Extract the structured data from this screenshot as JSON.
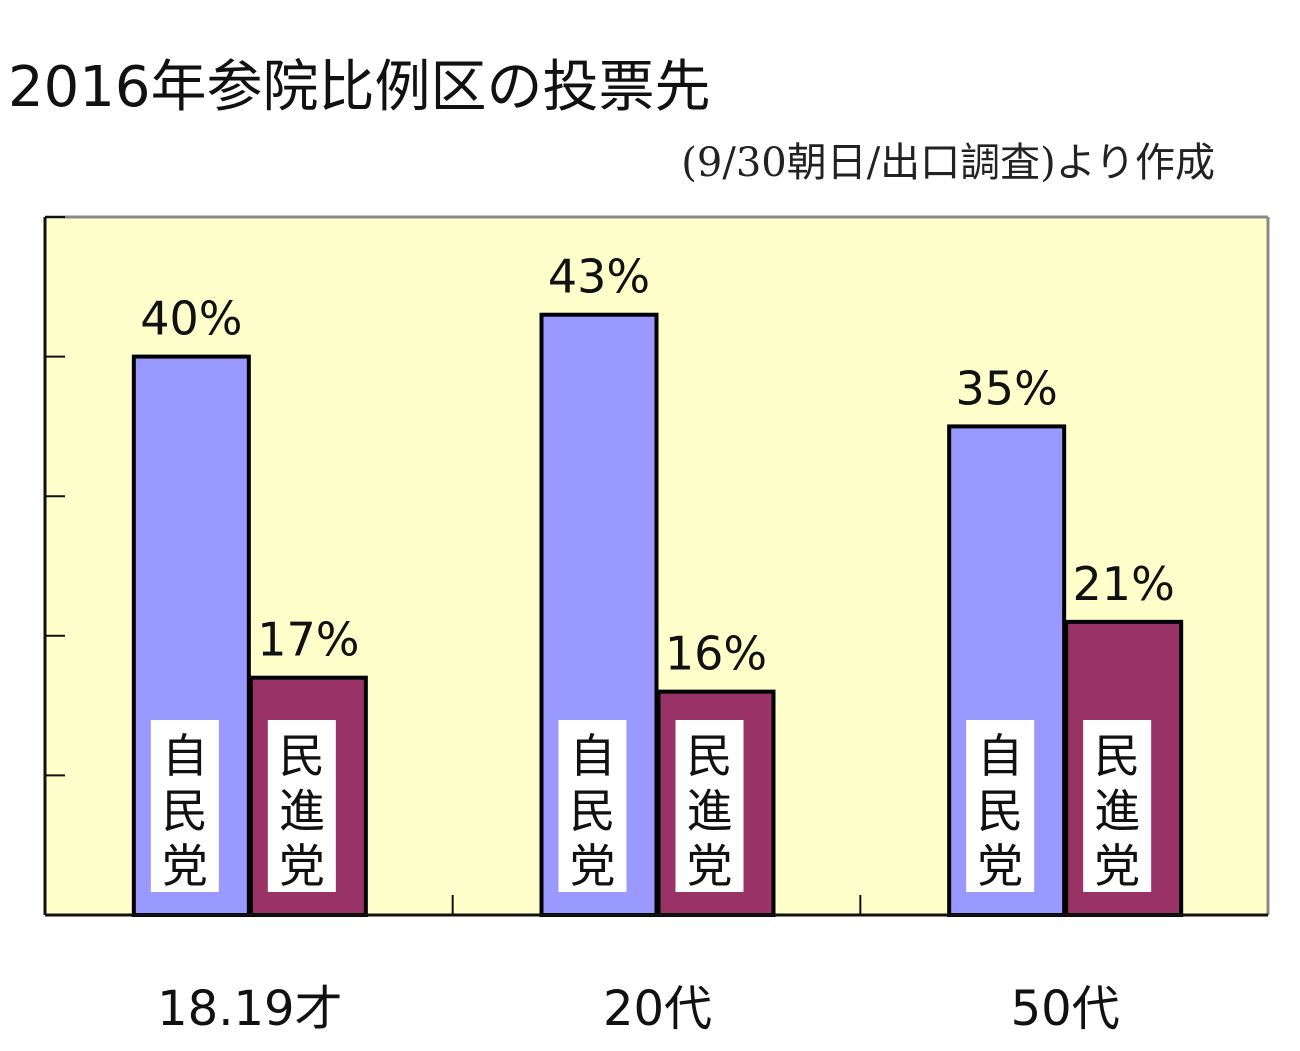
{
  "chart_data": {
    "type": "bar",
    "title": "2016年参院比例区の投票先",
    "subtitle": "(9/30朝日/出口調査)より作成",
    "categories": [
      "18.19才",
      "20代",
      "50代"
    ],
    "series": [
      {
        "name": "自民党",
        "values": [
          40,
          43,
          35
        ],
        "color": "#9999ff"
      },
      {
        "name": "民進党",
        "values": [
          17,
          16,
          21
        ],
        "color": "#993366"
      }
    ],
    "value_labels": [
      [
        "40%",
        "43%",
        "35%"
      ],
      [
        "17%",
        "16%",
        "21%"
      ]
    ],
    "ylim": [
      0,
      50
    ],
    "yticks": [
      0,
      10,
      20,
      30,
      40,
      50
    ],
    "xlabel": "",
    "ylabel": "",
    "plot_background": "#ffffcc",
    "grid": false,
    "legend": "in-bar labels"
  }
}
